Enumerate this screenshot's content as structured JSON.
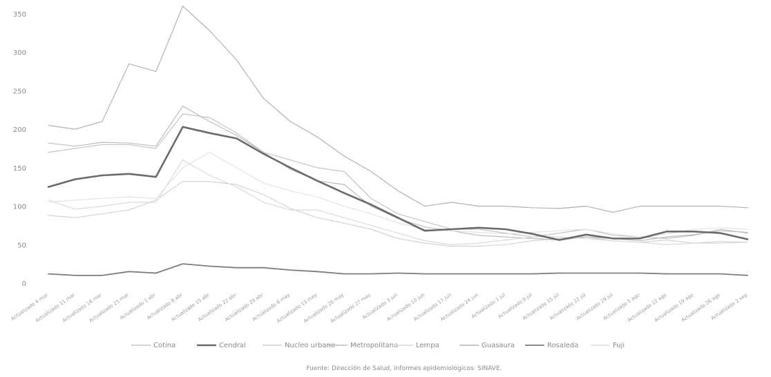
{
  "chart_data": {
    "type": "line",
    "title": "",
    "xlabel": "",
    "ylabel": "",
    "ylim": [
      0,
      350
    ],
    "y_ticks": [
      "0",
      "50",
      "100",
      "150",
      "200",
      "250",
      "300",
      "350"
    ],
    "grid": false,
    "legend_position": "bottom",
    "categories": [
      "Actualizado 4 mar",
      "Actualizado 11 mar",
      "Actualizado 18 mar",
      "Actualizado 25 mar",
      "Actualizado 1 abr",
      "Actualizado 8 abr",
      "Actualizado 15 abr",
      "Actualizado 22 abr",
      "Actualizado 29 abr",
      "Actualizado 6 may",
      "Actualizado 13 may",
      "Actualizado 20 may",
      "Actualizado 27 may",
      "Actualizado 3 jun",
      "Actualizado 10 jun",
      "Actualizado 17 jun",
      "Actualizado 24 jun",
      "Actualizado 1 jul",
      "Actualizado 8 jul",
      "Actualizado 15 jul",
      "Actualizado 22 jul",
      "Actualizado 29 jul",
      "Actualizado 5 ago",
      "Actualizado 12 ago",
      "Actualizado 19 ago",
      "Actualizado 26 ago",
      "Actualizado 2 sep"
    ],
    "series": [
      {
        "name": "Cotina",
        "color": "#c4c4c4",
        "width": 1.2,
        "values": [
          170,
          175,
          180,
          180,
          175,
          220,
          215,
          195,
          170,
          160,
          150,
          145,
          110,
          90,
          80,
          70,
          70,
          65,
          60,
          65,
          70,
          62,
          60,
          58,
          62,
          70,
          65
        ]
      },
      {
        "name": "Cendral",
        "color": "#6a6a6a",
        "width": 2.6,
        "values": [
          125,
          135,
          140,
          142,
          138,
          203,
          195,
          188,
          168,
          150,
          133,
          117,
          102,
          85,
          68,
          70,
          72,
          70,
          64,
          56,
          63,
          58,
          58,
          67,
          67,
          65,
          57
        ]
      },
      {
        "name": "Nucleo urbano",
        "color": "#d2d2d2",
        "width": 1.2,
        "values": [
          88,
          85,
          90,
          95,
          108,
          132,
          132,
          128,
          115,
          97,
          85,
          78,
          70,
          58,
          52,
          48,
          48,
          50,
          55,
          58,
          60,
          55,
          53,
          56,
          52,
          54,
          53
        ]
      },
      {
        "name": "Metropolitana",
        "color": "#bcbcbc",
        "width": 1.2,
        "values": [
          182,
          178,
          183,
          182,
          178,
          230,
          210,
          192,
          170,
          148,
          133,
          128,
          100,
          84,
          73,
          68,
          62,
          60,
          58,
          56,
          60,
          58,
          55,
          60,
          63,
          68,
          66
        ]
      },
      {
        "name": "Lempa",
        "color": "#dadada",
        "width": 1.2,
        "values": [
          108,
          96,
          100,
          105,
          105,
          160,
          140,
          125,
          105,
          95,
          95,
          85,
          75,
          65,
          55,
          50,
          52,
          56,
          60,
          60,
          58,
          55,
          53,
          50,
          52,
          52,
          53
        ]
      },
      {
        "name": "Guasaura",
        "color": "#b2b2b2",
        "width": 1.2,
        "values": [
          205,
          200,
          210,
          285,
          275,
          360,
          328,
          290,
          240,
          210,
          190,
          165,
          145,
          120,
          100,
          105,
          100,
          100,
          98,
          97,
          100,
          92,
          100,
          100,
          100,
          100,
          98
        ]
      },
      {
        "name": "Rosaleda",
        "color": "#7c7c7c",
        "width": 1.8,
        "values": [
          12,
          10,
          10,
          15,
          13,
          25,
          22,
          20,
          20,
          17,
          15,
          12,
          12,
          13,
          12,
          12,
          12,
          12,
          12,
          13,
          13,
          13,
          13,
          12,
          12,
          12,
          10
        ]
      },
      {
        "name": "Fuji",
        "color": "#e2e2e2",
        "width": 1.2,
        "values": [
          105,
          108,
          110,
          112,
          110,
          150,
          170,
          150,
          130,
          120,
          112,
          100,
          90,
          78,
          70,
          68,
          66,
          64,
          66,
          68,
          70,
          64,
          60,
          64,
          70,
          72,
          70
        ]
      }
    ],
    "source": "Fuente: Dirección de Salud, informes epidemiológicos. SINAVE."
  }
}
